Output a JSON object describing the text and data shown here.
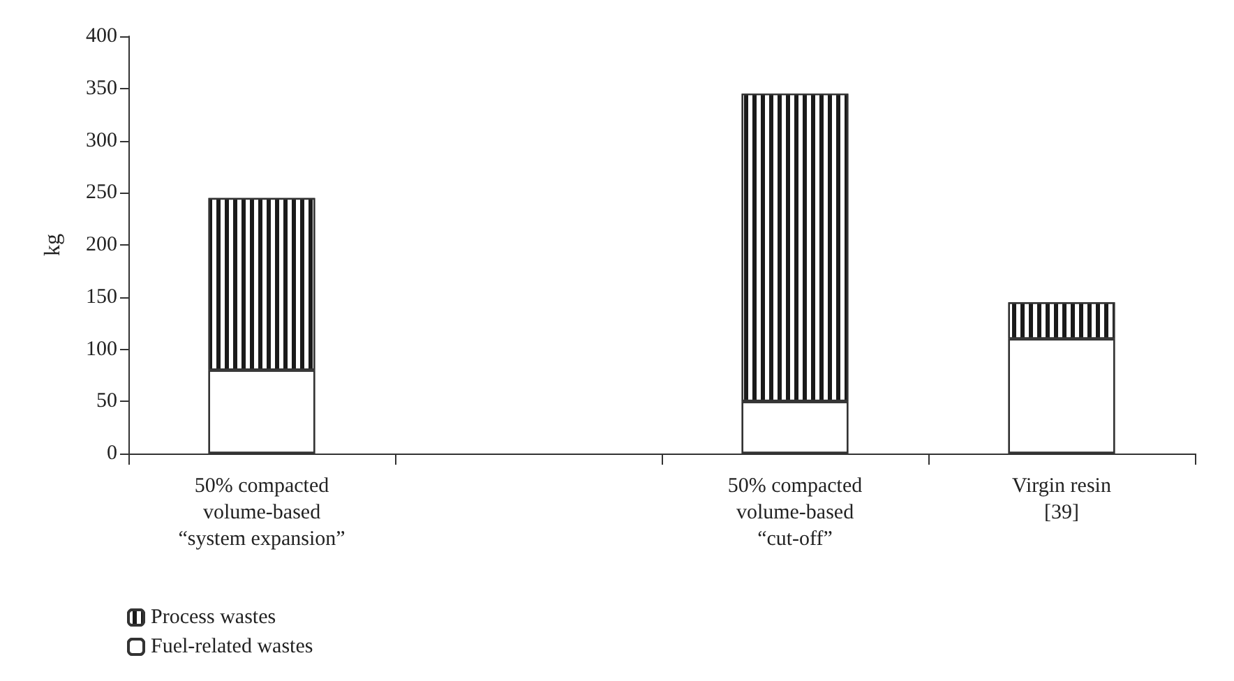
{
  "chart_data": {
    "type": "bar",
    "stacked": true,
    "ylabel": "kg",
    "categories": [
      "50% compacted\nvolume-based\n“system expansion”",
      null,
      "50% compacted\nvolume-based\n“cut-off”",
      "Virgin resin\n[39]"
    ],
    "series": [
      {
        "name": "Fuel-related wastes",
        "color": "#ffffff",
        "values": [
          80,
          null,
          50,
          110
        ]
      },
      {
        "name": "Process wastes",
        "color": "#1a1a1a",
        "values": [
          165,
          null,
          295,
          35
        ]
      }
    ],
    "ylim": [
      0,
      400
    ],
    "yticks": [
      0,
      50,
      100,
      150,
      200,
      250,
      300,
      350,
      400
    ],
    "grid": false,
    "legend": "bottom left"
  }
}
